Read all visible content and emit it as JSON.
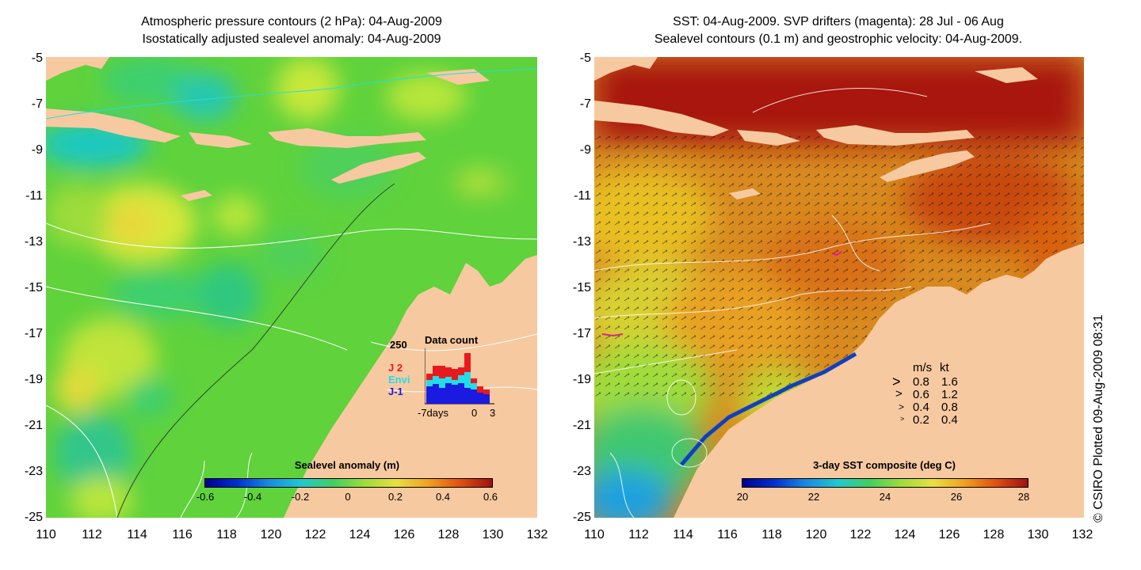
{
  "left_panel": {
    "title_line1": "Atmospheric pressure contours (2 hPa): 04-Aug-2009",
    "title_line2": "Isostatically adjusted sealevel anomaly: 04-Aug-2009",
    "colorbar_title": "Sealevel anomaly (m)",
    "colorbar_ticks": [
      "-0.6",
      "-0.4",
      "-0.2",
      "0",
      "0.2",
      "0.4",
      "0.6"
    ],
    "inset": {
      "title": "Data count",
      "ymax_label": "250",
      "x_labels": [
        "-7days",
        "0",
        "3"
      ],
      "legend": [
        {
          "label": "J 2",
          "color": "#e8191e"
        },
        {
          "label": "Envi",
          "color": "#22dde8"
        },
        {
          "label": "J-1",
          "color": "#1a1ae0"
        }
      ]
    }
  },
  "right_panel": {
    "title_line1": "SST: 04-Aug-2009. SVP drifters (magenta): 28 Jul - 06 Aug",
    "title_line2": "Sealevel contours (0.1 m) and geostrophic velocity: 04-Aug-2009.",
    "colorbar_title": "3-day SST composite (deg C)",
    "colorbar_ticks": [
      "20",
      "22",
      "24",
      "26",
      "28"
    ],
    "velocity_legend": {
      "header_ms": "m/s",
      "header_kt": "kt",
      "rows": [
        {
          "ms": "0.8",
          "kt": "1.6"
        },
        {
          "ms": "0.6",
          "kt": "1.2"
        },
        {
          "ms": "0.4",
          "kt": "0.8"
        },
        {
          "ms": "0.2",
          "kt": "0.4"
        }
      ]
    }
  },
  "axes": {
    "y_ticks": [
      "-5",
      "-7",
      "-9",
      "-11",
      "-13",
      "-15",
      "-17",
      "-19",
      "-21",
      "-23",
      "-25"
    ],
    "x_ticks": [
      "110",
      "112",
      "114",
      "116",
      "118",
      "120",
      "122",
      "124",
      "126",
      "128",
      "130",
      "132"
    ]
  },
  "credit": "© CSIRO Plotted 09-Aug-2009 08:31",
  "colors": {
    "land": "#f7c9a0",
    "ocean_mid": "#59d13a",
    "sst_hot": "#a8140c",
    "sst_warm": "#d86a10",
    "magenta": "#e0208a"
  }
}
